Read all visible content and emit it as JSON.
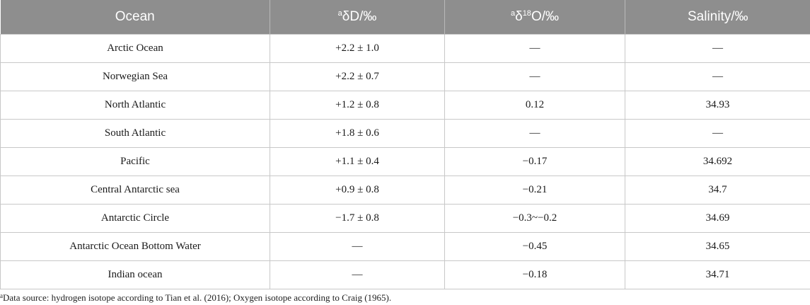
{
  "table": {
    "headers": {
      "ocean": "Ocean",
      "dD_marker": "a",
      "dD": "δD/‰",
      "d18O_marker": "a",
      "d18O_prefix": "δ",
      "d18O_sup": "18",
      "d18O_suffix": "O/‰",
      "salinity": "Salinity/‰"
    },
    "rows": [
      {
        "ocean": "Arctic Ocean",
        "dD": "+2.2 ± 1.0",
        "d18O": "—",
        "salinity": "—"
      },
      {
        "ocean": "Norwegian Sea",
        "dD": "+2.2 ± 0.7",
        "d18O": "—",
        "salinity": "—"
      },
      {
        "ocean": "North Atlantic",
        "dD": "+1.2 ± 0.8",
        "d18O": "0.12",
        "salinity": "34.93"
      },
      {
        "ocean": "South Atlantic",
        "dD": "+1.8 ± 0.6",
        "d18O": "—",
        "salinity": "—"
      },
      {
        "ocean": "Pacific",
        "dD": "+1.1 ± 0.4",
        "d18O": "−0.17",
        "salinity": "34.692"
      },
      {
        "ocean": "Central Antarctic sea",
        "dD": "+0.9 ± 0.8",
        "d18O": "−0.21",
        "salinity": "34.7"
      },
      {
        "ocean": "Antarctic Circle",
        "dD": "−1.7 ± 0.8",
        "d18O": "−0.3~−0.2",
        "salinity": "34.69"
      },
      {
        "ocean": "Antarctic Ocean Bottom Water",
        "dD": "—",
        "d18O": "−0.45",
        "salinity": "34.65"
      },
      {
        "ocean": "Indian ocean",
        "dD": "—",
        "d18O": "−0.18",
        "salinity": "34.71"
      }
    ]
  },
  "footnote": {
    "marker": "a",
    "text": "Data source: hydrogen isotope according to Tian et al. (2016); Oxygen isotope according to Craig (1965)."
  }
}
